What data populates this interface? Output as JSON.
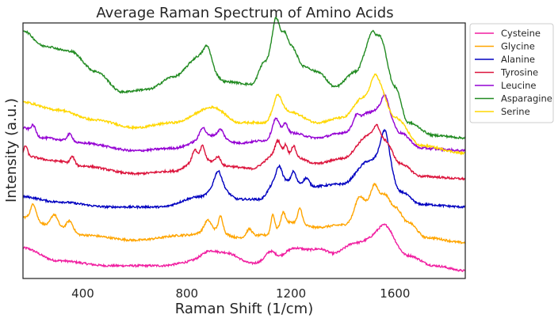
{
  "chart_data": {
    "type": "line",
    "title": "Average Raman Spectrum of Amino Acids",
    "xlabel": "Raman Shift (1/cm)",
    "ylabel": "Intensity (a.u.)",
    "xlim": [
      170,
      1870
    ],
    "ylim": [
      0,
      1
    ],
    "xticks": [
      400,
      800,
      1200,
      1600
    ],
    "yticks_shown": false,
    "grid": false,
    "legend_position": "outside-right-top",
    "series": [
      {
        "name": "Cysteine",
        "color": "#f01ea0",
        "offset": 0.02,
        "points": [
          [
            170,
            0.1
          ],
          [
            300,
            0.05
          ],
          [
            500,
            0.03
          ],
          [
            700,
            0.03
          ],
          [
            850,
            0.05
          ],
          [
            950,
            0.08
          ],
          [
            1050,
            0.04
          ],
          [
            1150,
            0.06
          ],
          [
            1250,
            0.09
          ],
          [
            1350,
            0.07
          ],
          [
            1450,
            0.12
          ],
          [
            1560,
            0.16
          ],
          [
            1650,
            0.07
          ],
          [
            1750,
            0.03
          ],
          [
            1870,
            0.01
          ]
        ],
        "peaks": [
          [
            880,
            40,
            0.03
          ],
          [
            1120,
            25,
            0.03
          ],
          [
            1200,
            40,
            0.02
          ],
          [
            1320,
            40,
            0.02
          ],
          [
            1560,
            35,
            0.03
          ]
        ]
      },
      {
        "name": "Glycine",
        "color": "#ffa500",
        "offset": 0.1,
        "points": [
          [
            170,
            0.14
          ],
          [
            300,
            0.1
          ],
          [
            400,
            0.07
          ],
          [
            600,
            0.05
          ],
          [
            800,
            0.07
          ],
          [
            900,
            0.09
          ],
          [
            1000,
            0.06
          ],
          [
            1100,
            0.07
          ],
          [
            1200,
            0.12
          ],
          [
            1300,
            0.1
          ],
          [
            1400,
            0.11
          ],
          [
            1500,
            0.2
          ],
          [
            1560,
            0.23
          ],
          [
            1600,
            0.18
          ],
          [
            1650,
            0.12
          ],
          [
            1720,
            0.06
          ],
          [
            1870,
            0.04
          ]
        ],
        "peaks": [
          [
            210,
            15,
            0.06
          ],
          [
            290,
            18,
            0.05
          ],
          [
            350,
            18,
            0.04
          ],
          [
            880,
            18,
            0.04
          ],
          [
            930,
            12,
            0.06
          ],
          [
            1040,
            15,
            0.03
          ],
          [
            1130,
            10,
            0.07
          ],
          [
            1170,
            12,
            0.05
          ],
          [
            1235,
            12,
            0.06
          ],
          [
            1460,
            20,
            0.05
          ],
          [
            1520,
            18,
            0.06
          ]
        ]
      },
      {
        "name": "Alanine",
        "color": "#0000c0",
        "offset": 0.24,
        "points": [
          [
            170,
            0.08
          ],
          [
            300,
            0.06
          ],
          [
            500,
            0.04
          ],
          [
            700,
            0.04
          ],
          [
            850,
            0.08
          ],
          [
            920,
            0.12
          ],
          [
            1000,
            0.07
          ],
          [
            1080,
            0.07
          ],
          [
            1150,
            0.15
          ],
          [
            1200,
            0.14
          ],
          [
            1280,
            0.12
          ],
          [
            1400,
            0.13
          ],
          [
            1500,
            0.22
          ],
          [
            1560,
            0.26
          ],
          [
            1620,
            0.1
          ],
          [
            1700,
            0.05
          ],
          [
            1870,
            0.04
          ]
        ],
        "peaks": [
          [
            920,
            20,
            0.06
          ],
          [
            1155,
            15,
            0.05
          ],
          [
            1210,
            12,
            0.04
          ],
          [
            1260,
            15,
            0.03
          ],
          [
            1560,
            20,
            0.08
          ]
        ]
      },
      {
        "name": "Tyrosine",
        "color": "#dc143c",
        "offset": 0.36,
        "points": [
          [
            170,
            0.12
          ],
          [
            300,
            0.1
          ],
          [
            400,
            0.08
          ],
          [
            600,
            0.05
          ],
          [
            750,
            0.06
          ],
          [
            850,
            0.11
          ],
          [
            950,
            0.08
          ],
          [
            1050,
            0.07
          ],
          [
            1150,
            0.13
          ],
          [
            1200,
            0.12
          ],
          [
            1300,
            0.09
          ],
          [
            1400,
            0.11
          ],
          [
            1500,
            0.2
          ],
          [
            1560,
            0.18
          ],
          [
            1620,
            0.09
          ],
          [
            1700,
            0.04
          ],
          [
            1870,
            0.03
          ]
        ],
        "peaks": [
          [
            180,
            10,
            0.04
          ],
          [
            360,
            12,
            0.03
          ],
          [
            830,
            12,
            0.04
          ],
          [
            860,
            12,
            0.05
          ],
          [
            920,
            15,
            0.03
          ],
          [
            1150,
            15,
            0.05
          ],
          [
            1180,
            10,
            0.04
          ],
          [
            1210,
            12,
            0.04
          ],
          [
            1530,
            18,
            0.05
          ]
        ]
      },
      {
        "name": "Leucine",
        "color": "#9400d3",
        "offset": 0.47,
        "points": [
          [
            170,
            0.12
          ],
          [
            250,
            0.08
          ],
          [
            400,
            0.06
          ],
          [
            600,
            0.03
          ],
          [
            750,
            0.04
          ],
          [
            900,
            0.09
          ],
          [
            1000,
            0.06
          ],
          [
            1100,
            0.07
          ],
          [
            1150,
            0.12
          ],
          [
            1200,
            0.1
          ],
          [
            1300,
            0.08
          ],
          [
            1400,
            0.1
          ],
          [
            1500,
            0.18
          ],
          [
            1560,
            0.21
          ],
          [
            1620,
            0.1
          ],
          [
            1700,
            0.04
          ],
          [
            1870,
            0.03
          ]
        ],
        "peaks": [
          [
            210,
            12,
            0.03
          ],
          [
            350,
            15,
            0.03
          ],
          [
            860,
            15,
            0.04
          ],
          [
            930,
            15,
            0.03
          ],
          [
            1140,
            15,
            0.04
          ],
          [
            1180,
            12,
            0.03
          ],
          [
            1450,
            15,
            0.03
          ],
          [
            1560,
            15,
            0.04
          ]
        ]
      },
      {
        "name": "Asparagine",
        "color": "#228b22",
        "offset": 0.55,
        "points": [
          [
            170,
            0.42
          ],
          [
            250,
            0.36
          ],
          [
            350,
            0.34
          ],
          [
            450,
            0.26
          ],
          [
            550,
            0.18
          ],
          [
            650,
            0.19
          ],
          [
            750,
            0.24
          ],
          [
            850,
            0.32
          ],
          [
            950,
            0.22
          ],
          [
            1050,
            0.21
          ],
          [
            1100,
            0.3
          ],
          [
            1150,
            0.42
          ],
          [
            1200,
            0.36
          ],
          [
            1250,
            0.28
          ],
          [
            1300,
            0.26
          ],
          [
            1370,
            0.2
          ],
          [
            1450,
            0.26
          ],
          [
            1500,
            0.36
          ],
          [
            1540,
            0.4
          ],
          [
            1600,
            0.2
          ],
          [
            1650,
            0.06
          ],
          [
            1750,
            0.01
          ],
          [
            1870,
            0.0
          ]
        ],
        "peaks": [
          [
            880,
            20,
            0.06
          ],
          [
            1140,
            15,
            0.06
          ],
          [
            1180,
            12,
            0.03
          ],
          [
            1510,
            15,
            0.05
          ]
        ]
      },
      {
        "name": "Serine",
        "color": "#ffd700",
        "offset": 0.49,
        "points": [
          [
            170,
            0.2
          ],
          [
            300,
            0.17
          ],
          [
            450,
            0.13
          ],
          [
            600,
            0.1
          ],
          [
            750,
            0.12
          ],
          [
            900,
            0.18
          ],
          [
            1000,
            0.12
          ],
          [
            1100,
            0.12
          ],
          [
            1150,
            0.2
          ],
          [
            1200,
            0.16
          ],
          [
            1300,
            0.12
          ],
          [
            1400,
            0.14
          ],
          [
            1480,
            0.22
          ],
          [
            1530,
            0.28
          ],
          [
            1600,
            0.14
          ],
          [
            1700,
            0.03
          ],
          [
            1870,
            0.0
          ]
        ],
        "peaks": [
          [
            1150,
            15,
            0.03
          ],
          [
            1520,
            20,
            0.03
          ]
        ]
      }
    ]
  }
}
